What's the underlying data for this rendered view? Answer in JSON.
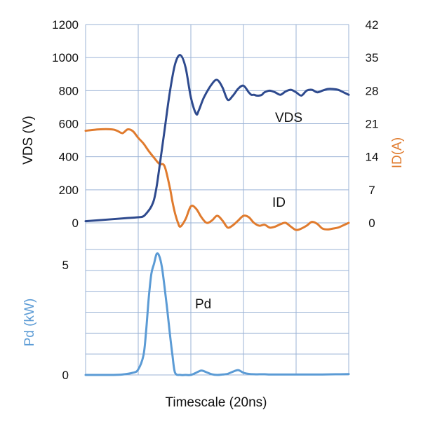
{
  "chart_data": {
    "type": "line",
    "xlabel": "Timescale (20ns)",
    "colors": {
      "vds": "#2e4a8e",
      "id": "#e07b2e",
      "pd": "#5b9bd5",
      "grid": "#9bb3d6",
      "text": "#111111"
    },
    "x_range": [
      0,
      100
    ],
    "top_panel": {
      "left_axis": {
        "label": "VDS (V)",
        "ylim": [
          0,
          1200
        ],
        "ticks": [
          0,
          200,
          400,
          600,
          800,
          1000,
          1200
        ],
        "tick_labels": [
          "0",
          "200",
          "400",
          "600",
          "800",
          "1000",
          "1200"
        ]
      },
      "right_axis": {
        "label": "ID(A)",
        "ylim": [
          0,
          42
        ],
        "ticks": [
          0,
          7,
          14,
          21,
          28,
          35,
          42
        ],
        "tick_labels": [
          "0",
          "7",
          "14",
          "21",
          "28",
          "35",
          "42"
        ]
      },
      "series": [
        {
          "name": "VDS",
          "axis": "left",
          "x": [
            0,
            5,
            10,
            15,
            20,
            22,
            24,
            25,
            26,
            27,
            28,
            30,
            32,
            34,
            36,
            38,
            40,
            42,
            43,
            45,
            48,
            50,
            52,
            54,
            56,
            58,
            60,
            62,
            63,
            64,
            65,
            66,
            67,
            68,
            70,
            72,
            74,
            76,
            78,
            80,
            82,
            84,
            86,
            88,
            90,
            92,
            94,
            96,
            98,
            100
          ],
          "y": [
            10,
            16,
            22,
            28,
            34,
            40,
            75,
            100,
            140,
            220,
            330,
            560,
            790,
            960,
            1015,
            940,
            760,
            660,
            680,
            760,
            840,
            865,
            820,
            745,
            770,
            812,
            830,
            790,
            775,
            775,
            770,
            770,
            775,
            790,
            800,
            790,
            775,
            795,
            805,
            790,
            770,
            800,
            805,
            790,
            800,
            810,
            810,
            805,
            790,
            775
          ],
          "label": "VDS"
        },
        {
          "name": "ID",
          "axis": "right",
          "x": [
            0,
            5,
            10,
            12,
            14,
            16,
            18,
            20,
            22,
            24,
            26,
            28,
            30,
            32,
            33,
            34,
            35,
            36,
            38,
            40,
            42,
            44,
            46,
            48,
            50,
            52,
            54,
            56,
            58,
            60,
            62,
            64,
            66,
            68,
            70,
            72,
            74,
            76,
            78,
            80,
            82,
            84,
            86,
            88,
            90,
            92,
            94,
            96,
            98,
            100
          ],
          "y": [
            19.5,
            19.8,
            19.8,
            19.5,
            19.0,
            19.8,
            19.4,
            18.0,
            16.8,
            15.2,
            13.8,
            12.5,
            12.0,
            7.5,
            4.5,
            2.0,
            0.2,
            -0.8,
            0.8,
            3.5,
            3.0,
            1.2,
            0.0,
            0.5,
            1.5,
            0.5,
            -1.0,
            -0.5,
            0.5,
            1.5,
            1.2,
            0.0,
            -0.6,
            -0.4,
            -1.0,
            -0.8,
            -0.3,
            0.0,
            -0.8,
            -1.5,
            -1.2,
            -0.6,
            0.2,
            -0.2,
            -1.2,
            -1.4,
            -1.2,
            -1.0,
            -0.5,
            0.0
          ],
          "label": "ID"
        }
      ]
    },
    "bottom_panel": {
      "left_axis": {
        "label": "Pd (kW)",
        "ylim": [
          0,
          5.7
        ],
        "ticks": [
          0,
          5
        ],
        "tick_labels": [
          "0",
          "5"
        ]
      },
      "series": [
        {
          "name": "Pd",
          "axis": "left",
          "x": [
            0,
            5,
            10,
            14,
            18,
            20,
            22,
            23,
            24,
            25,
            26,
            27,
            28,
            29,
            30,
            31,
            32,
            33,
            34,
            36,
            38,
            40,
            42,
            44,
            46,
            48,
            50,
            52,
            54,
            56,
            58,
            60,
            62,
            64,
            66,
            68,
            70,
            75,
            80,
            85,
            90,
            95,
            100
          ],
          "y": [
            0,
            0,
            0,
            0.02,
            0.1,
            0.25,
            0.9,
            2.0,
            3.5,
            4.6,
            5.05,
            5.5,
            5.4,
            4.9,
            4.0,
            3.0,
            1.9,
            0.9,
            0.1,
            0,
            0,
            0,
            0.1,
            0.2,
            0.12,
            0.03,
            0.0,
            0.02,
            0.05,
            0.15,
            0.22,
            0.1,
            0.05,
            0.03,
            0.03,
            0.03,
            0.02,
            0.02,
            0.02,
            0.02,
            0.02,
            0.03,
            0.04
          ],
          "label": "Pd"
        }
      ]
    }
  }
}
